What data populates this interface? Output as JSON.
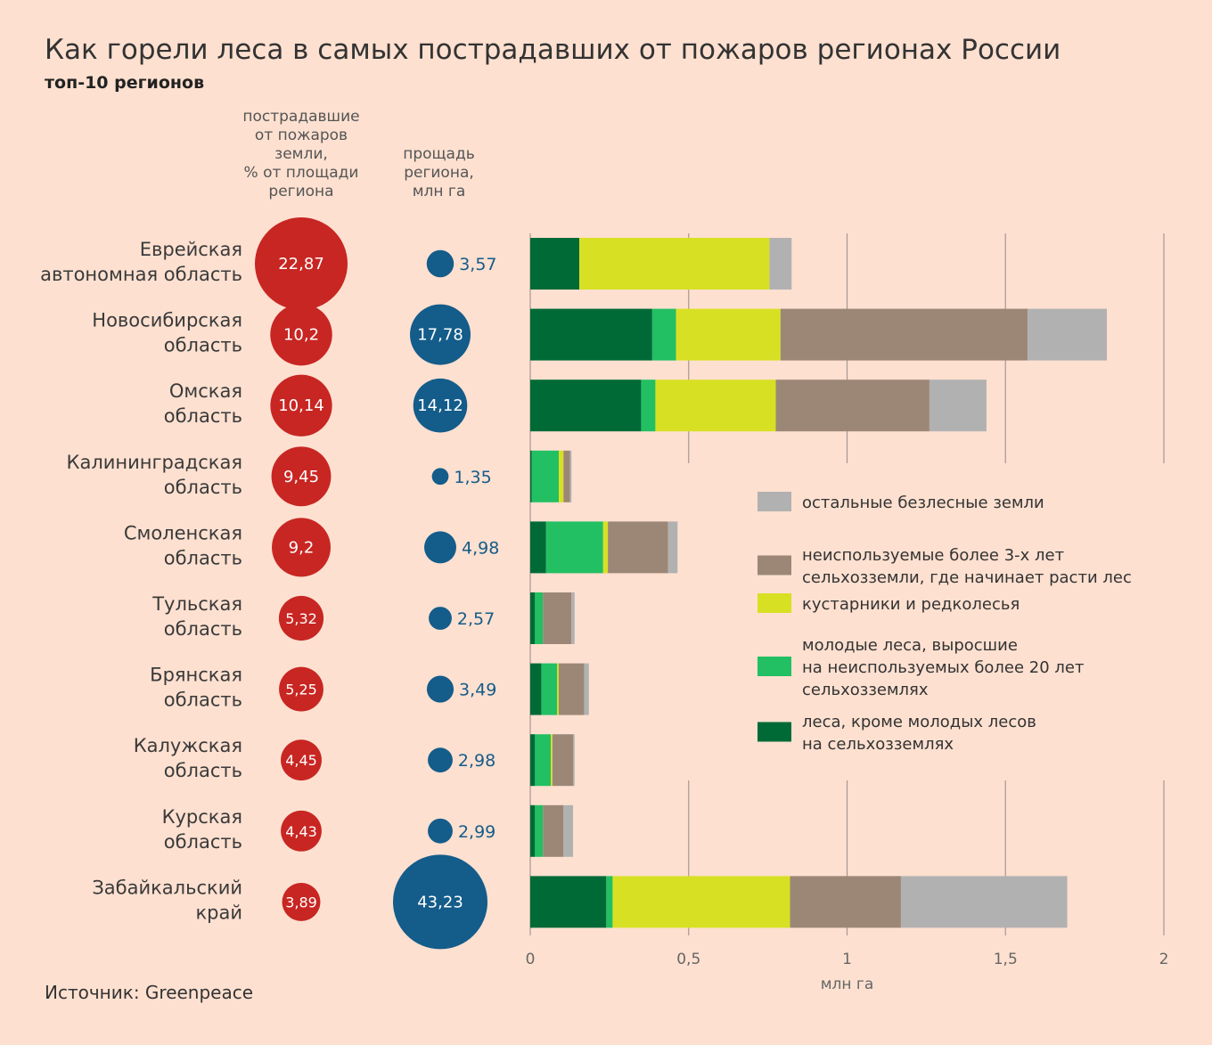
{
  "title": "Как горели леса в самых пострадавших от пожаров регионах России",
  "subtitle": "топ-10 регионов",
  "source": "Источник: Greenpeace",
  "columns": {
    "percent": "пострадавшие\nот пожаров\nземли,\n% от площади\nрегиона",
    "area": "прощадь\nрегиона,\nмлн га"
  },
  "colors": {
    "percent_bubble": "#c82623",
    "area_bubble": "#145c8a",
    "area_text": "#145c8a",
    "axis_line": "#a89890",
    "background": "#fde0d0"
  },
  "chart_data": {
    "type": "bar",
    "orientation": "horizontal",
    "stacked": true,
    "xlabel": "млн га",
    "xlim": [
      0,
      2
    ],
    "xticks": [
      "0",
      "0,5",
      "1",
      "1,5",
      "2"
    ],
    "xtick_values": [
      0,
      0.5,
      1,
      1.5,
      2
    ],
    "grid": true,
    "legend_position": "right",
    "categories": [
      "Еврейская\nавтономная область",
      "Новосибирская\nобласть",
      "Омская\nобласть",
      "Калининградская\nобласть",
      "Смоленская\nобласть",
      "Тульская\nобласть",
      "Брянская\nобласть",
      "Калужская\nобласть",
      "Курская\nобласть",
      "Забайкальский\nкрай"
    ],
    "percent_burned": [
      22.87,
      10.2,
      10.14,
      9.45,
      9.2,
      5.32,
      5.25,
      4.45,
      4.43,
      3.89
    ],
    "percent_burned_labels": [
      "22,87",
      "10,2",
      "10,14",
      "9,45",
      "9,2",
      "5,32",
      "5,25",
      "4,45",
      "4,43",
      "3,89"
    ],
    "region_area": [
      3.57,
      17.78,
      14.12,
      1.35,
      4.98,
      2.57,
      3.49,
      2.98,
      2.99,
      43.23
    ],
    "region_area_labels": [
      "3,57",
      "17,78",
      "14,12",
      "1,35",
      "4,98",
      "2,57",
      "3,49",
      "2,98",
      "2,99",
      "43,23"
    ],
    "series": [
      {
        "name": "леса, кроме молодых лесов\nна сельхозземлях",
        "color": "#006a37",
        "values": [
          0.155,
          0.385,
          0.35,
          0.005,
          0.05,
          0.015,
          0.035,
          0.015,
          0.015,
          0.24
        ]
      },
      {
        "name": "молодые леса, выросшие\nна неиспользуемых более 20 лет\nсельхозземлях",
        "color": "#22bf63",
        "values": [
          0,
          0.075,
          0.045,
          0.085,
          0.18,
          0.025,
          0.05,
          0.05,
          0.025,
          0.02
        ]
      },
      {
        "name": "кустарники и редколесья",
        "color": "#d8e024",
        "values": [
          0.6,
          0.33,
          0.38,
          0.015,
          0.015,
          0,
          0.005,
          0.005,
          0,
          0.56
        ]
      },
      {
        "name": "неиспользуемые более 3-х лет\nсельхозземли, где начинает расти лес",
        "color": "#9c8776",
        "values": [
          0,
          0.78,
          0.485,
          0.02,
          0.19,
          0.09,
          0.08,
          0.065,
          0.065,
          0.35
        ]
      },
      {
        "name": "остальные безлесные земли",
        "color": "#b1b1b1",
        "values": [
          0.07,
          0.25,
          0.18,
          0.005,
          0.03,
          0.01,
          0.015,
          0.005,
          0.03,
          0.525
        ]
      }
    ]
  }
}
